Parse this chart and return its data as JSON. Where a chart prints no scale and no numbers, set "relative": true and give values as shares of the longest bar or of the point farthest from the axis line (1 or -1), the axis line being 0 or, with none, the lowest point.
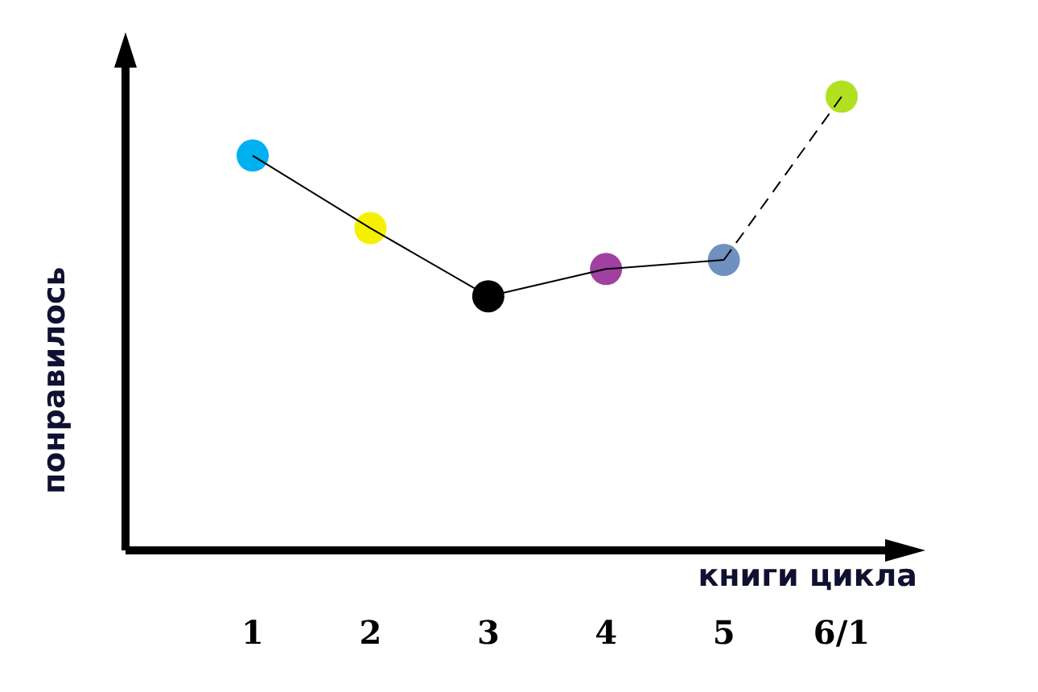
{
  "chart_data": {
    "type": "line",
    "xlabel": "книги цикла",
    "ylabel": "понравилось",
    "relative": true,
    "categories": [
      "1",
      "2",
      "3",
      "4",
      "5",
      "6/1"
    ],
    "series": [
      {
        "color": "#000000",
        "line_style": "solid",
        "marker": "none",
        "values": [
          0.87,
          0.71,
          0.56,
          0.62,
          0.64,
          null
        ]
      },
      {
        "color": "#000000",
        "line_style": "dashed",
        "marker": "none",
        "values": [
          null,
          null,
          null,
          null,
          0.64,
          1
        ]
      },
      {
        "type": "scatter",
        "marker": "circle",
        "colors": [
          "#00b0f0",
          "#f5f000",
          "#000000",
          "#a040a0",
          "#7090c0",
          "#b0e020"
        ],
        "values": [
          0.87,
          0.71,
          0.56,
          0.62,
          0.64,
          1
        ]
      }
    ]
  }
}
